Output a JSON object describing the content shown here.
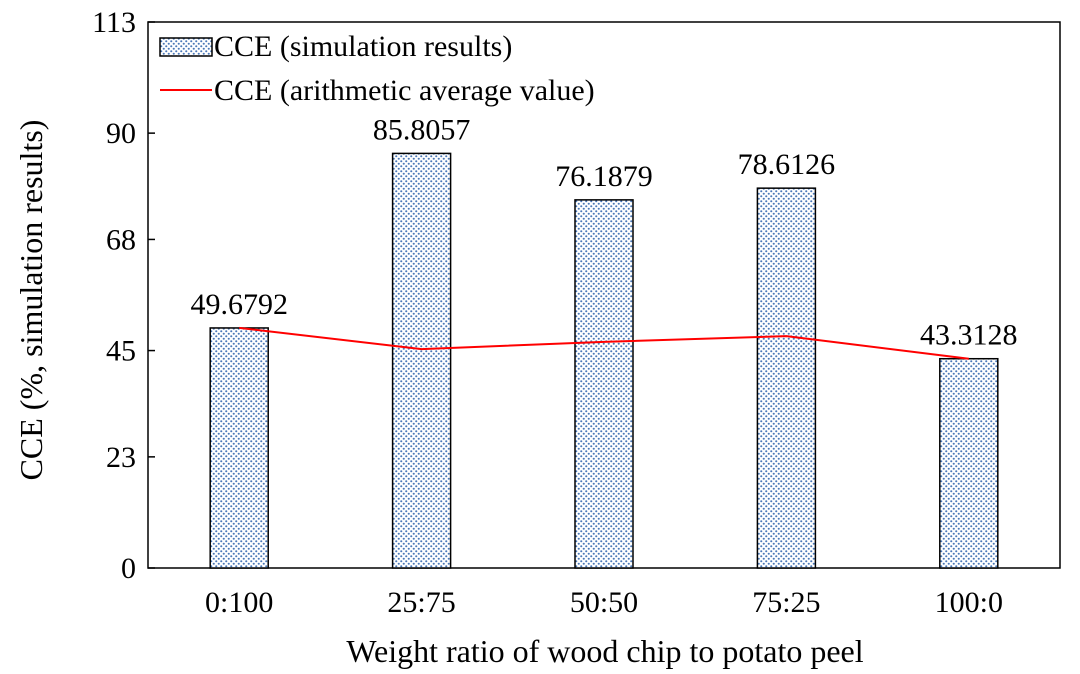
{
  "chart_data": {
    "type": "bar",
    "title": "",
    "xlabel": "Weight ratio of wood chip to potato peel",
    "ylabel": "CCE (%, simulation results)",
    "categories": [
      "0:100",
      "25:75",
      "50:50",
      "75:25",
      "100:0"
    ],
    "ylim": [
      0,
      113
    ],
    "yticks": [
      0,
      23,
      45,
      68,
      90,
      113
    ],
    "grid": false,
    "legend_position": "top-left",
    "series": [
      {
        "name": "CCE (simulation results)",
        "kind": "bar",
        "pattern": "dotted-blue",
        "values": [
          49.6792,
          85.8057,
          76.1879,
          78.6126,
          43.3128
        ],
        "labels": [
          "49.6792",
          "85.8057",
          "76.1879",
          "78.6126",
          "43.3128"
        ]
      },
      {
        "name": "CCE (arithmetic average value)",
        "kind": "line",
        "color": "#ff0000",
        "values": [
          49.7,
          45.3,
          46.8,
          48.0,
          43.3
        ]
      }
    ]
  },
  "colors": {
    "bar_dot": "#4a78b8",
    "bar_fill": "#ffffff",
    "line": "#ff0000",
    "axis": "#000000"
  }
}
